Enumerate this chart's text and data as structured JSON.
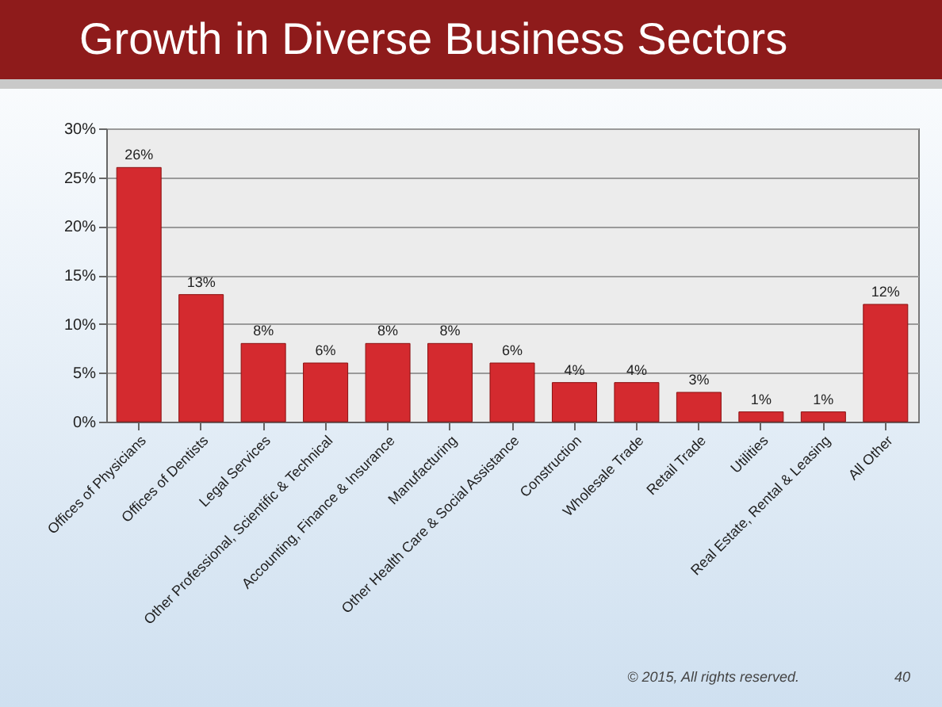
{
  "chart_data": {
    "type": "bar",
    "title": "Growth in Diverse Business Sectors",
    "categories": [
      "Offices of Physicians",
      "Offices of Dentists",
      "Legal Services",
      "Other Professional, Scientific & Technical",
      "Accounting, Finance & Insurance",
      "Manufacturing",
      "Other Health Care & Social Assistance",
      "Construction",
      "Wholesale Trade",
      "Retail Trade",
      "Utilities",
      "Real Estate, Rental & Leasing",
      "All Other"
    ],
    "values": [
      26,
      13,
      8,
      6,
      8,
      8,
      6,
      4,
      4,
      3,
      1,
      1,
      12
    ],
    "value_labels": [
      "26%",
      "13%",
      "8%",
      "6%",
      "8%",
      "8%",
      "6%",
      "4%",
      "4%",
      "3%",
      "1%",
      "1%",
      "12%"
    ],
    "color": "#d42a2f",
    "ylim": [
      0,
      30
    ],
    "yticks": [
      {
        "value": 0,
        "label": "0%"
      },
      {
        "value": 5,
        "label": "5%"
      },
      {
        "value": 10,
        "label": "10%"
      },
      {
        "value": 15,
        "label": "15%"
      },
      {
        "value": 20,
        "label": "20%"
      },
      {
        "value": 25,
        "label": "25%"
      },
      {
        "value": 30,
        "label": "30%"
      }
    ],
    "grid": "y",
    "annotations": [
      "© 2015, All rights reserved.",
      "40"
    ]
  }
}
